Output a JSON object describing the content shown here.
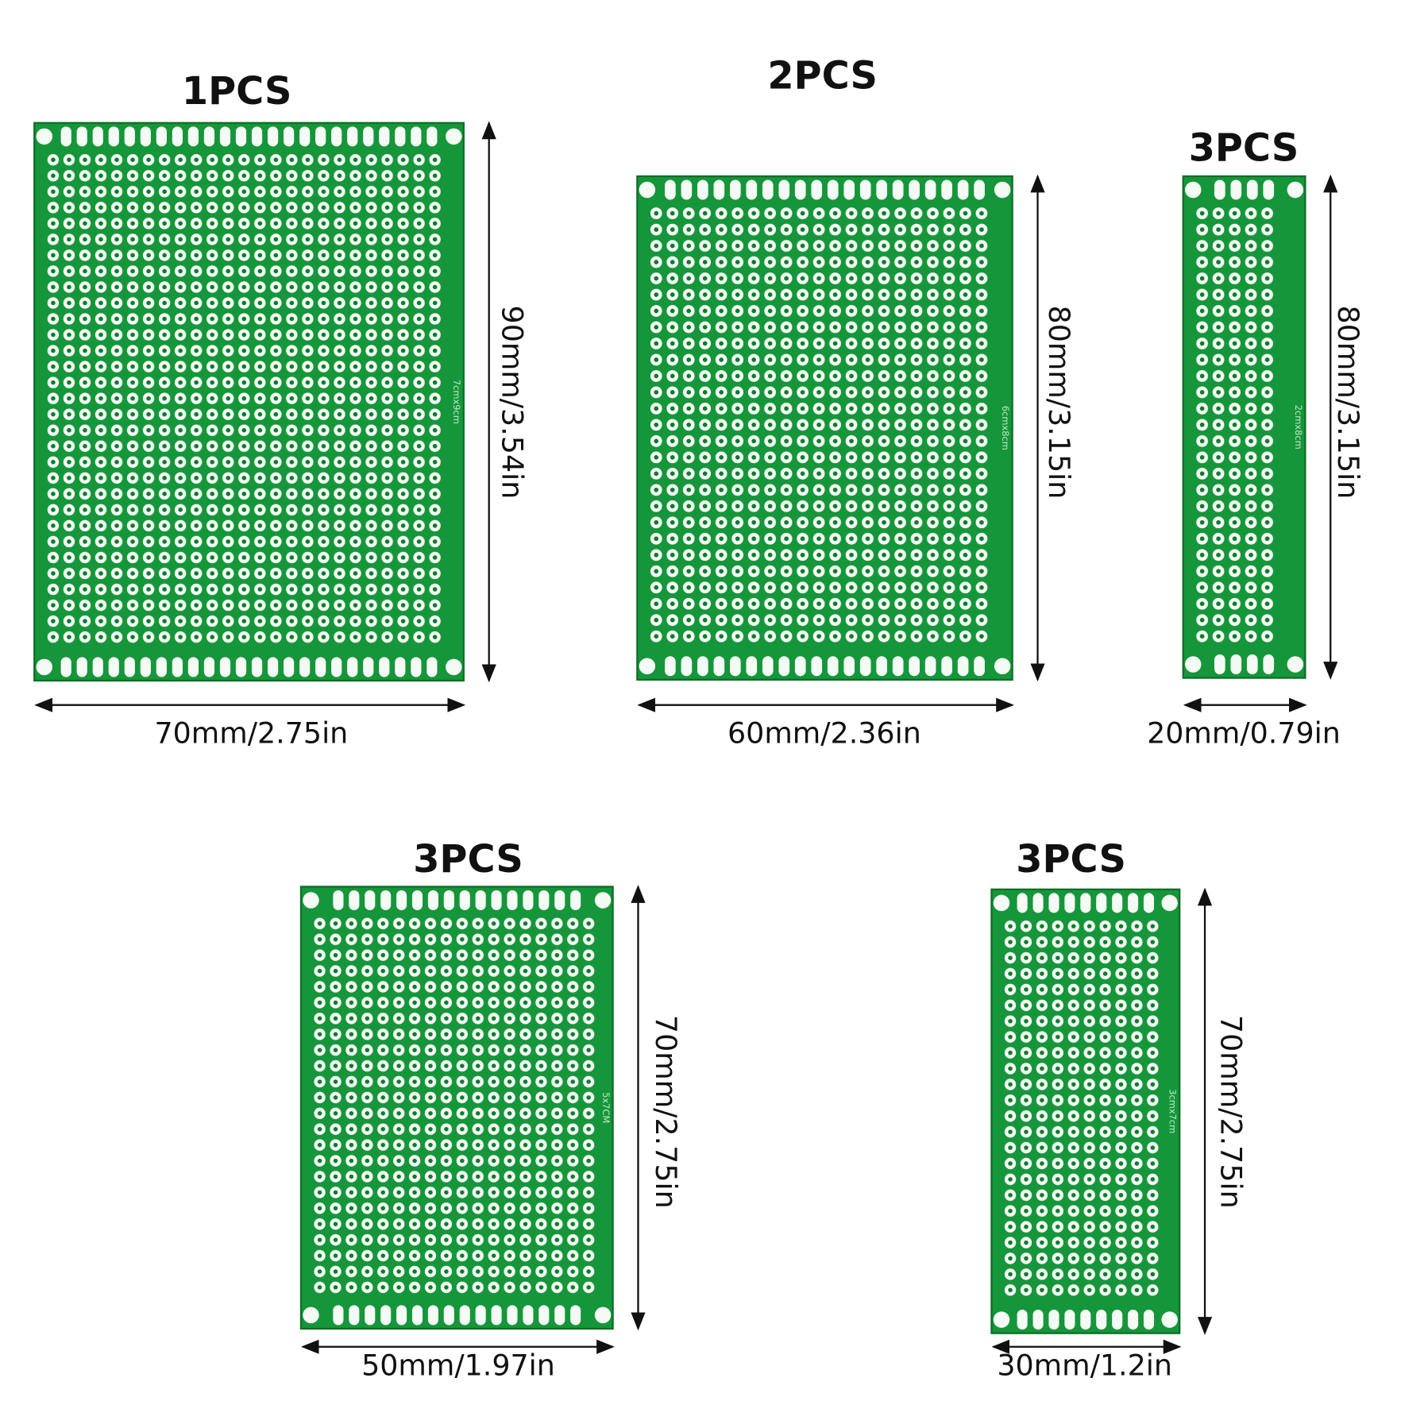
{
  "boards": [
    {
      "quantity": "1PCS",
      "width": "70mm/2.75in",
      "height": "90mm/3.54in",
      "marking": "7cmx9cm"
    },
    {
      "quantity": "2PCS",
      "width": "60mm/2.36in",
      "height": "80mm/3.15in",
      "marking": "6cmx8cm"
    },
    {
      "quantity": "3PCS",
      "width": "20mm/0.79in",
      "height": "80mm/3.15in",
      "marking": "2cmx8cm"
    },
    {
      "quantity": "3PCS",
      "width": "50mm/1.97in",
      "height": "70mm/2.75in",
      "marking": "5x7CM"
    },
    {
      "quantity": "3PCS",
      "width": "30mm/1.2in",
      "height": "70mm/2.75in",
      "marking": "3cmx7cm"
    }
  ]
}
